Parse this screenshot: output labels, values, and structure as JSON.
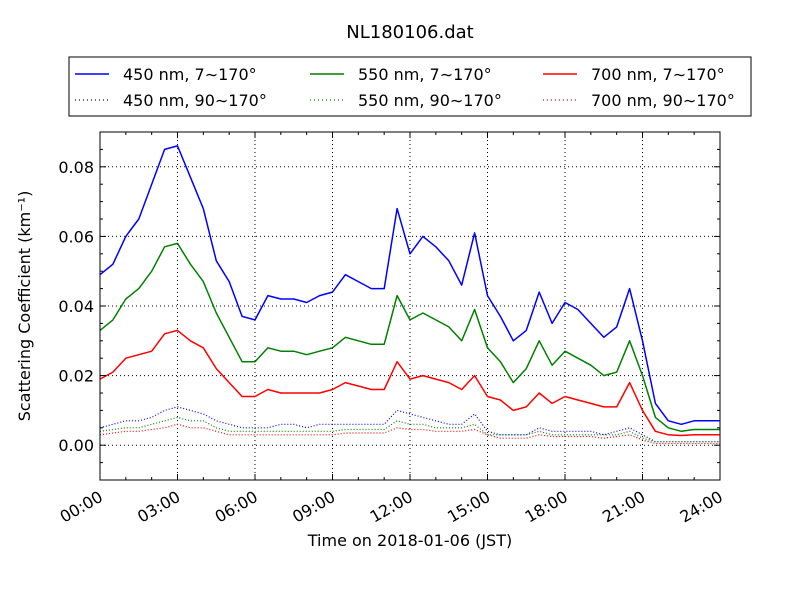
{
  "chart_data": {
    "type": "line",
    "title": "NL180106.dat",
    "xlabel": "Time on 2018-01-06 (JST)",
    "ylabel": "Scattering Coefficient (km⁻¹)",
    "xlim_hours": [
      0,
      24
    ],
    "ylim": [
      -0.01,
      0.09
    ],
    "x_tick_hours": [
      0,
      3,
      6,
      9,
      12,
      15,
      18,
      21,
      24
    ],
    "x_tick_labels": [
      "00:00",
      "03:00",
      "06:00",
      "09:00",
      "12:00",
      "15:00",
      "18:00",
      "21:00",
      "24:00"
    ],
    "y_ticks": [
      0.0,
      0.02,
      0.04,
      0.06,
      0.08
    ],
    "y_tick_labels": [
      "0.00",
      "0.02",
      "0.04",
      "0.06",
      "0.08"
    ],
    "grid": true,
    "legend_placement": "top, above plot, 3 columns",
    "x_start_hours": 0,
    "x_step_hours": 0.5,
    "series": [
      {
        "name": "450 nm, 7∼170°",
        "color": "#0000ff",
        "style": "solid",
        "values": [
          0.049,
          0.052,
          0.06,
          0.065,
          0.075,
          0.085,
          0.086,
          0.077,
          0.068,
          0.053,
          0.047,
          0.037,
          0.036,
          0.043,
          0.042,
          0.042,
          0.041,
          0.043,
          0.044,
          0.049,
          0.047,
          0.045,
          0.045,
          0.068,
          0.055,
          0.06,
          0.057,
          0.053,
          0.046,
          0.061,
          0.043,
          0.037,
          0.03,
          0.033,
          0.044,
          0.035,
          0.041,
          0.039,
          0.035,
          0.031,
          0.034,
          0.045,
          0.03,
          0.012,
          0.007,
          0.006,
          0.007,
          0.007,
          0.007
        ]
      },
      {
        "name": "550 nm, 7∼170°",
        "color": "#008000",
        "style": "solid",
        "values": [
          0.033,
          0.036,
          0.042,
          0.045,
          0.05,
          0.057,
          0.058,
          0.052,
          0.047,
          0.038,
          0.031,
          0.024,
          0.024,
          0.028,
          0.027,
          0.027,
          0.026,
          0.027,
          0.028,
          0.031,
          0.03,
          0.029,
          0.029,
          0.043,
          0.036,
          0.038,
          0.036,
          0.034,
          0.03,
          0.039,
          0.028,
          0.024,
          0.018,
          0.022,
          0.03,
          0.023,
          0.027,
          0.025,
          0.023,
          0.02,
          0.021,
          0.03,
          0.02,
          0.008,
          0.005,
          0.004,
          0.0045,
          0.0045,
          0.0045
        ]
      },
      {
        "name": "700 nm, 7∼170°",
        "color": "#ff0000",
        "style": "solid",
        "values": [
          0.019,
          0.021,
          0.025,
          0.026,
          0.027,
          0.032,
          0.033,
          0.03,
          0.028,
          0.022,
          0.018,
          0.014,
          0.014,
          0.016,
          0.015,
          0.015,
          0.015,
          0.015,
          0.016,
          0.018,
          0.017,
          0.016,
          0.016,
          0.024,
          0.019,
          0.02,
          0.019,
          0.018,
          0.016,
          0.02,
          0.014,
          0.013,
          0.01,
          0.011,
          0.015,
          0.012,
          0.014,
          0.013,
          0.012,
          0.011,
          0.011,
          0.018,
          0.01,
          0.004,
          0.003,
          0.0028,
          0.003,
          0.003,
          0.003
        ]
      },
      {
        "name": "450 nm, 90∼170°",
        "color": "#0000ff",
        "style": "dotted",
        "values": [
          0.005,
          0.006,
          0.007,
          0.007,
          0.008,
          0.01,
          0.011,
          0.01,
          0.009,
          0.007,
          0.006,
          0.005,
          0.005,
          0.005,
          0.006,
          0.006,
          0.005,
          0.006,
          0.006,
          0.006,
          0.006,
          0.006,
          0.006,
          0.01,
          0.009,
          0.008,
          0.007,
          0.006,
          0.006,
          0.009,
          0.004,
          0.003,
          0.003,
          0.003,
          0.005,
          0.004,
          0.004,
          0.004,
          0.004,
          0.003,
          0.004,
          0.005,
          0.003,
          0.001,
          0.001,
          0.001,
          0.001,
          0.001,
          0.001
        ]
      },
      {
        "name": "550 nm, 90∼170°",
        "color": "#008000",
        "style": "dotted",
        "values": [
          0.004,
          0.0045,
          0.005,
          0.005,
          0.006,
          0.007,
          0.008,
          0.007,
          0.007,
          0.005,
          0.004,
          0.004,
          0.004,
          0.004,
          0.004,
          0.004,
          0.004,
          0.004,
          0.004,
          0.0045,
          0.0045,
          0.0045,
          0.0045,
          0.007,
          0.006,
          0.006,
          0.005,
          0.005,
          0.005,
          0.006,
          0.003,
          0.003,
          0.003,
          0.003,
          0.004,
          0.003,
          0.003,
          0.003,
          0.003,
          0.003,
          0.003,
          0.004,
          0.002,
          0.001,
          0.001,
          0.001,
          0.001,
          0.001,
          0.001
        ]
      },
      {
        "name": "700 nm, 90∼170°",
        "color": "#ff0000",
        "style": "dotted",
        "values": [
          0.003,
          0.0035,
          0.004,
          0.004,
          0.0045,
          0.005,
          0.006,
          0.005,
          0.005,
          0.004,
          0.003,
          0.003,
          0.003,
          0.003,
          0.003,
          0.003,
          0.003,
          0.003,
          0.003,
          0.0035,
          0.0035,
          0.0035,
          0.0035,
          0.005,
          0.0045,
          0.0045,
          0.004,
          0.004,
          0.004,
          0.0045,
          0.003,
          0.002,
          0.002,
          0.002,
          0.003,
          0.0025,
          0.0025,
          0.0025,
          0.0025,
          0.002,
          0.0025,
          0.003,
          0.0015,
          0.0005,
          0.0005,
          0.0005,
          0.0005,
          0.0005,
          0.0005
        ]
      }
    ]
  }
}
